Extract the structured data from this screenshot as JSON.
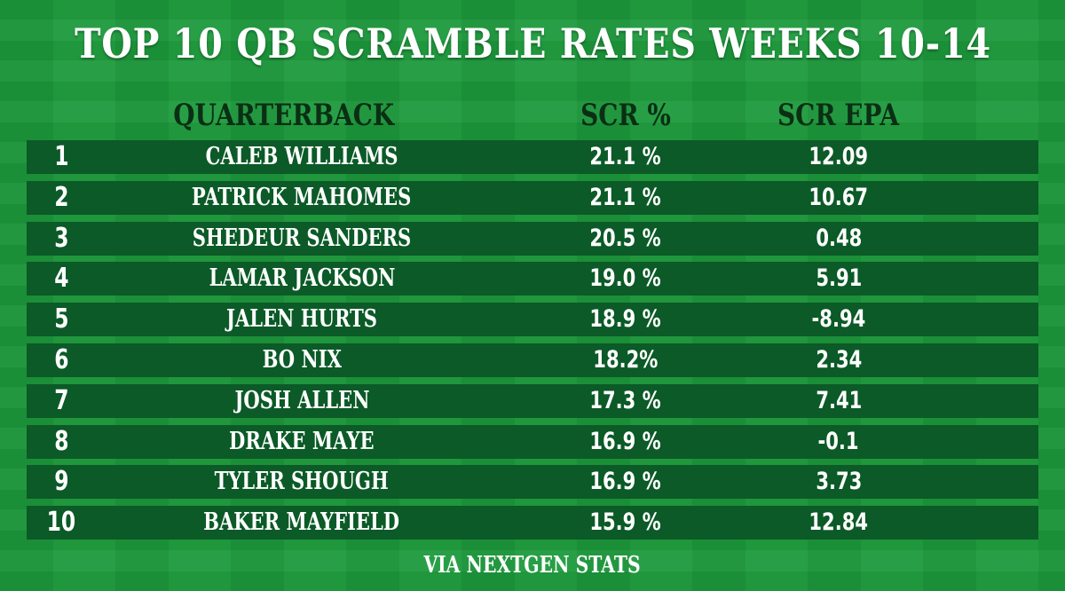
{
  "chart_data": {
    "type": "table",
    "title": "TOP 10 QB SCRAMBLE RATES WEEKS 10-14",
    "columns": [
      "QUARTERBACK",
      "SCR %",
      "SCR EPA"
    ],
    "rows": [
      {
        "rank": "1",
        "name": "CALEB WILLIAMS",
        "scr_pct": "21.1 %",
        "scr_epa": "12.09"
      },
      {
        "rank": "2",
        "name": "PATRICK MAHOMES",
        "scr_pct": "21.1 %",
        "scr_epa": "10.67"
      },
      {
        "rank": "3",
        "name": "SHEDEUR SANDERS",
        "scr_pct": "20.5 %",
        "scr_epa": "0.48"
      },
      {
        "rank": "4",
        "name": "LAMAR JACKSON",
        "scr_pct": "19.0 %",
        "scr_epa": "5.91"
      },
      {
        "rank": "5",
        "name": "JALEN HURTS",
        "scr_pct": "18.9 %",
        "scr_epa": "-8.94"
      },
      {
        "rank": "6",
        "name": "BO NIX",
        "scr_pct": "18.2%",
        "scr_epa": "2.34"
      },
      {
        "rank": "7",
        "name": "JOSH ALLEN",
        "scr_pct": "17.3 %",
        "scr_epa": "7.41"
      },
      {
        "rank": "8",
        "name": "DRAKE MAYE",
        "scr_pct": "16.9 %",
        "scr_epa": "-0.1"
      },
      {
        "rank": "9",
        "name": "TYLER SHOUGH",
        "scr_pct": "16.9 %",
        "scr_epa": "3.73"
      },
      {
        "rank": "10",
        "name": "BAKER MAYFIELD",
        "scr_pct": "15.9 %",
        "scr_epa": "12.84"
      }
    ],
    "footer": "VIA NEXTGEN STATS"
  },
  "colors": {
    "background": "#1d9a3c",
    "row": "#0b5a27",
    "header_text": "#0a2f14",
    "text": "#ffffff"
  }
}
